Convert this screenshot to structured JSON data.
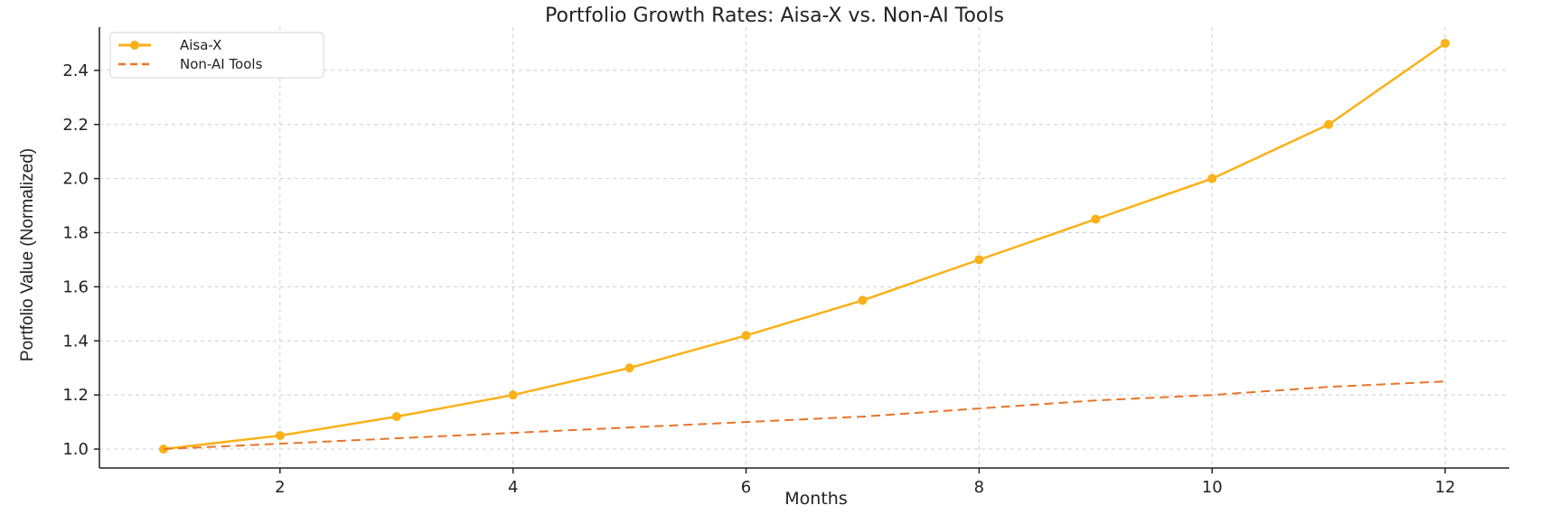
{
  "chart_data": {
    "type": "line",
    "title": "Portfolio Growth Rates: Aisa-X vs. Non-AI Tools",
    "xlabel": "Months",
    "ylabel": "Portfolio Value (Normalized)",
    "x": [
      1,
      2,
      3,
      4,
      5,
      6,
      7,
      8,
      9,
      10,
      11,
      12
    ],
    "xlim": [
      0.45,
      12.55
    ],
    "ylim": [
      0.93,
      2.56
    ],
    "xticks": [
      2,
      4,
      6,
      8,
      10,
      12
    ],
    "yticks": [
      1.0,
      1.2,
      1.4,
      1.6,
      1.8,
      2.0,
      2.2,
      2.4
    ],
    "grid": true,
    "legend_position": "top-left",
    "series": [
      {
        "name": "Aisa-X",
        "values": [
          1.0,
          1.05,
          1.12,
          1.2,
          1.3,
          1.42,
          1.55,
          1.7,
          1.85,
          2.0,
          2.2,
          2.5
        ],
        "color": "#FBB117",
        "style": "solid",
        "marker": "circle"
      },
      {
        "name": "Non-AI Tools",
        "values": [
          1.0,
          1.02,
          1.04,
          1.06,
          1.08,
          1.1,
          1.12,
          1.15,
          1.18,
          1.2,
          1.23,
          1.25
        ],
        "color": "#E8742A",
        "style": "dashed",
        "marker": "none"
      }
    ]
  }
}
